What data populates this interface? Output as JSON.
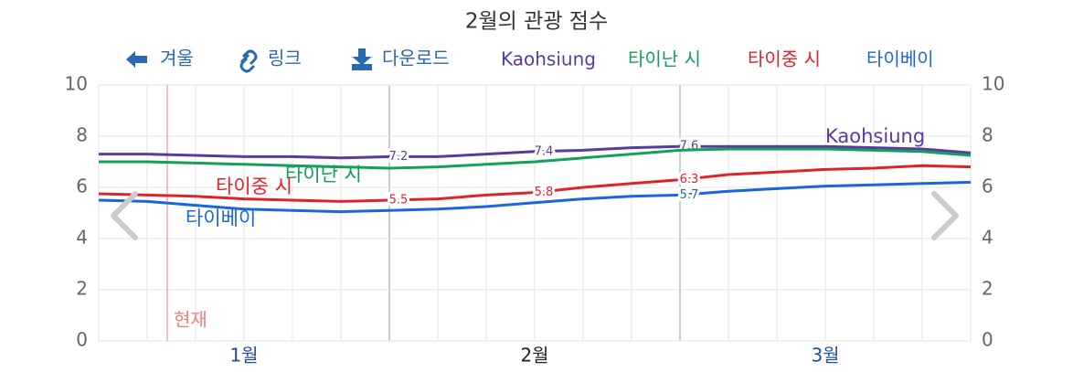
{
  "chart_data": {
    "type": "line",
    "title": "2월의 관광 점수",
    "toolbar": [
      "겨울",
      "링크",
      "다운로드"
    ],
    "categories": [
      null,
      null,
      null,
      "1월",
      null,
      null,
      null,
      null,
      null,
      "2월",
      null,
      null,
      null,
      null,
      null,
      "3월",
      null,
      null,
      null
    ],
    "series": [
      {
        "name": "Kaohsiung",
        "color": "#5b3a9e",
        "values": [
          7.3,
          7.3,
          7.25,
          7.2,
          7.2,
          7.15,
          7.2,
          7.2,
          7.3,
          7.4,
          7.45,
          7.55,
          7.6,
          7.6,
          7.6,
          7.6,
          7.55,
          7.5,
          7.35
        ],
        "value_labels": [
          null,
          null,
          null,
          null,
          null,
          null,
          "7.2",
          null,
          null,
          "7.4",
          null,
          null,
          "7.6",
          null,
          null,
          null,
          null,
          null,
          null
        ]
      },
      {
        "name": "타이난 시",
        "color": "#12a05a",
        "values": [
          7.0,
          7.0,
          6.95,
          6.9,
          6.85,
          6.8,
          6.75,
          6.8,
          6.9,
          7.0,
          7.15,
          7.3,
          7.45,
          7.5,
          7.5,
          7.5,
          7.45,
          7.4,
          7.25
        ],
        "value_labels": [
          null,
          null,
          null,
          null,
          null,
          null,
          null,
          null,
          null,
          null,
          null,
          null,
          null,
          null,
          null,
          null,
          null,
          null,
          null
        ]
      },
      {
        "name": "타이중 시",
        "color": "#e0222b",
        "values": [
          5.75,
          5.7,
          5.65,
          5.55,
          5.5,
          5.45,
          5.5,
          5.55,
          5.7,
          5.8,
          6.0,
          6.15,
          6.3,
          6.5,
          6.6,
          6.7,
          6.75,
          6.85,
          6.8
        ],
        "value_labels": [
          null,
          null,
          null,
          null,
          null,
          null,
          "5.5",
          null,
          null,
          "5.8",
          null,
          null,
          "6.3",
          null,
          null,
          null,
          null,
          null,
          null
        ]
      },
      {
        "name": "타이베이",
        "color": "#1a66e0",
        "values": [
          5.5,
          5.45,
          5.3,
          5.15,
          5.1,
          5.05,
          5.1,
          5.15,
          5.25,
          5.4,
          5.55,
          5.65,
          5.7,
          5.85,
          5.95,
          6.05,
          6.1,
          6.15,
          6.2
        ],
        "value_labels": [
          null,
          null,
          null,
          null,
          null,
          null,
          null,
          null,
          null,
          null,
          null,
          null,
          "5.7",
          null,
          null,
          null,
          null,
          null,
          null
        ]
      }
    ],
    "ylim": [
      0,
      10
    ],
    "yticks": [
      0,
      2,
      4,
      6,
      8,
      10
    ],
    "y2lim": [
      0,
      10
    ],
    "y2ticks": [
      0,
      2,
      4,
      6,
      8,
      10
    ],
    "grid": true,
    "annotations": [
      "현재"
    ]
  }
}
